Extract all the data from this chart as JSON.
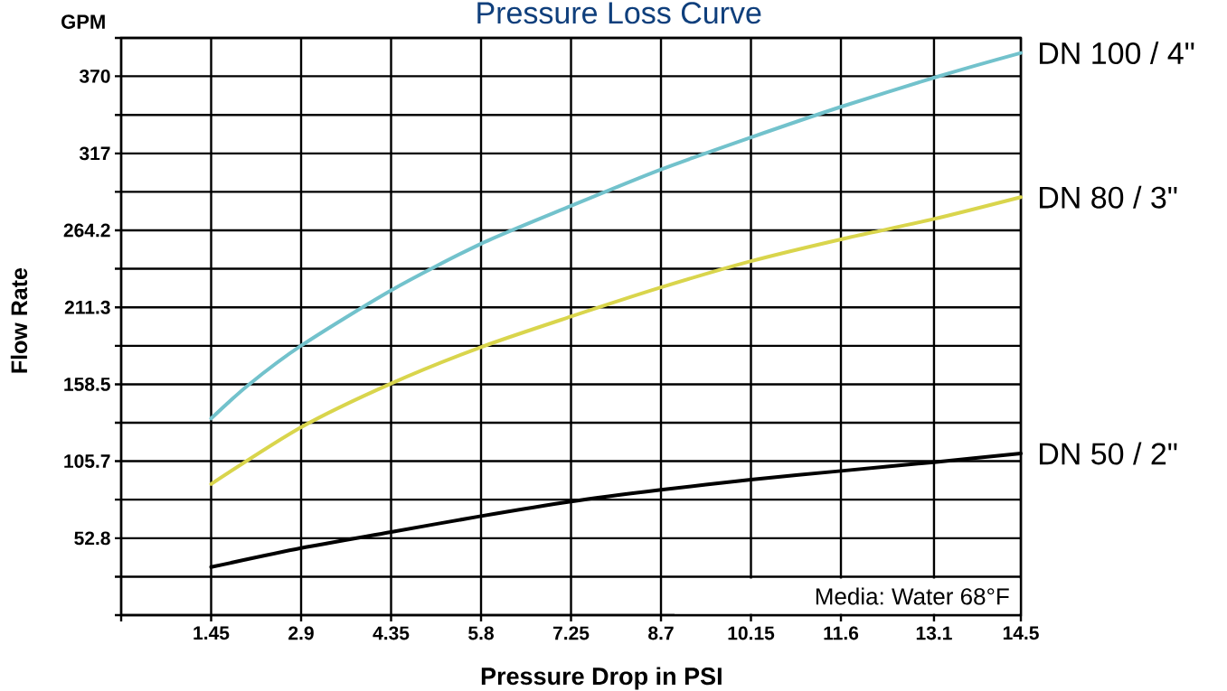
{
  "chart_data": {
    "type": "line",
    "title": "Pressure Loss Curve",
    "xlabel": "Pressure Drop in PSI",
    "ylabel": "Flow Rate",
    "annotations": [
      "GPM",
      "Media: Water 68°F"
    ],
    "xlim": [
      0,
      14.5
    ],
    "ylim": [
      0,
      396.3
    ],
    "xticks": [
      {
        "value": 0,
        "label": null
      },
      1.45,
      2.9,
      4.35,
      5.8,
      7.25,
      8.7,
      10.15,
      11.6,
      13.1,
      14.5
    ],
    "yticks": [
      {
        "value": 0,
        "label": null
      },
      {
        "value": 26.4,
        "label": null
      },
      52.8,
      {
        "value": 79.3,
        "label": null
      },
      105.7,
      {
        "value": 132.1,
        "label": null
      },
      158.5,
      {
        "value": 184.9,
        "label": null
      },
      211.3,
      {
        "value": 237.8,
        "label": null
      },
      264.2,
      {
        "value": 290.6,
        "label": null
      },
      317,
      {
        "value": 343.4,
        "label": null
      },
      370,
      {
        "value": 396.3,
        "label": null
      }
    ],
    "grid": true,
    "line_style": "solid",
    "series": [
      {
        "name": "DN 100 / 4\"",
        "color": "#72c2cc",
        "x": [
          1.45,
          2.05,
          2.9,
          4.35,
          5.8,
          7.25,
          8.7,
          10.15,
          11.6,
          13.1,
          14.5
        ],
        "values": [
          135,
          158,
          185,
          223,
          255,
          281,
          306,
          328,
          349,
          369,
          386
        ]
      },
      {
        "name": "DN 80 / 3\"",
        "color": "#d9d54c",
        "x": [
          1.45,
          2.9,
          4.35,
          5.8,
          7.25,
          8.7,
          10.15,
          11.6,
          13.1,
          14.5
        ],
        "values": [
          90,
          129,
          159,
          184,
          205,
          225,
          243,
          258,
          272,
          287
        ]
      },
      {
        "name": "DN 50 / 2\"",
        "color": "#000000",
        "x": [
          1.45,
          2.9,
          4.35,
          5.8,
          7.25,
          8.7,
          10.15,
          11.6,
          13.1,
          14.5
        ],
        "values": [
          33,
          46,
          57,
          68,
          78,
          86,
          93,
          99,
          105,
          111
        ]
      }
    ]
  }
}
